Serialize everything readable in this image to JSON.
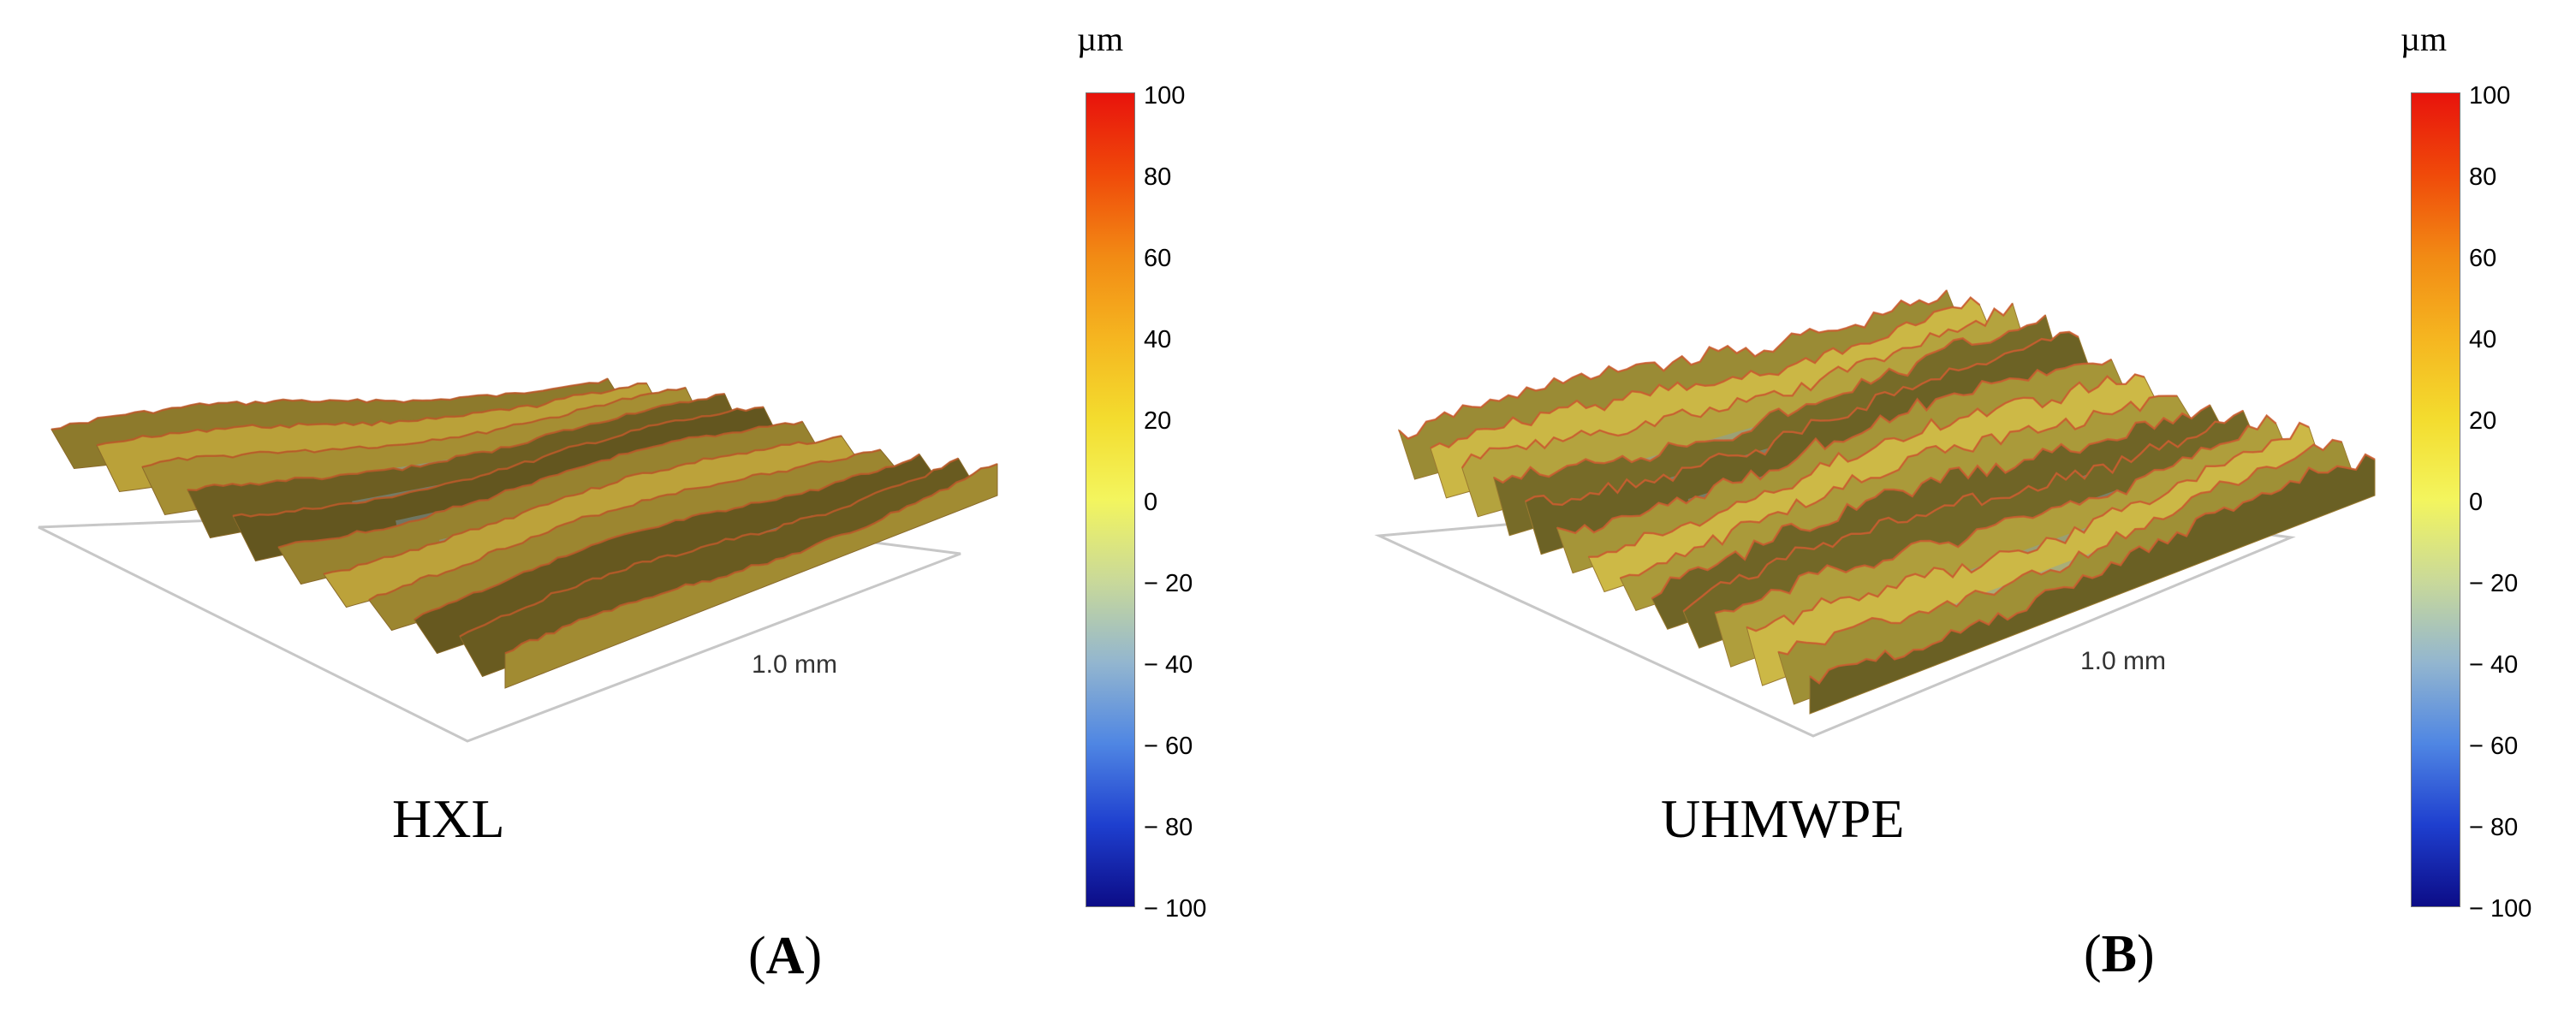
{
  "panels": [
    {
      "id": "A",
      "letter": "A",
      "sample_label": "HXL",
      "scale_label": "1.0 mm",
      "colorbar": {
        "unit": "µm",
        "ticks": [
          "100",
          "80",
          "60",
          "40",
          "20",
          "0",
          "− 20",
          "− 40",
          "− 60",
          "− 80",
          "− 100"
        ]
      }
    },
    {
      "id": "B",
      "letter": "B",
      "sample_label": "UHMWPE",
      "scale_label": "1.0 mm",
      "colorbar": {
        "unit": "µm",
        "ticks": [
          "100",
          "80",
          "60",
          "40",
          "20",
          "0",
          "− 20",
          "− 40",
          "− 60",
          "− 80",
          "− 100"
        ]
      }
    }
  ],
  "chart_data": [
    {
      "type": "surface",
      "title": "HXL",
      "panel": "A",
      "zlabel": "µm",
      "zlim": [
        -100,
        100
      ],
      "colorbar_ticks": [
        100,
        80,
        60,
        40,
        20,
        0,
        -20,
        -40,
        -60,
        -80,
        -100
      ],
      "scale_bar": "1.0 mm",
      "ridges": 10,
      "amplitude_um": 25,
      "roughness": 0.15
    },
    {
      "type": "surface",
      "title": "UHMWPE",
      "panel": "B",
      "zlabel": "µm",
      "zlim": [
        -100,
        100
      ],
      "colorbar_ticks": [
        100,
        80,
        60,
        40,
        20,
        0,
        -20,
        -40,
        -60,
        -80,
        -100
      ],
      "scale_bar": "1.0 mm",
      "ridges": 13,
      "amplitude_um": 30,
      "roughness": 0.55
    }
  ]
}
